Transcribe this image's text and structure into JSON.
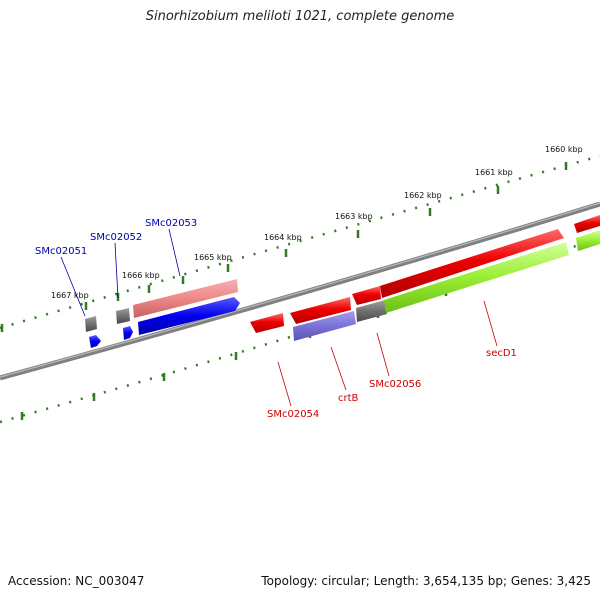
{
  "title": "Sinorhizobium meliloti 1021, complete genome",
  "footer": {
    "accession": "Accession: NC_003047",
    "summary": "Topology: circular; Length: 3,654,135 bp; Genes: 3,425"
  },
  "ruler": {
    "labels": [
      "1667 kbp",
      "1666 kbp",
      "1665 kbp",
      "1664 kbp",
      "1663 kbp",
      "1662 kbp",
      "1661 kbp",
      "1660 kbp"
    ],
    "tick_color": "#2f7d1e"
  },
  "colors": {
    "backbone": "#808080",
    "forward_gene": "#ee0000",
    "forward_gene_light": "#ee8888",
    "reverse_gene": "#0000ee",
    "reverse_gene_light": "#7a72d6",
    "pseudo_gene": "#707070",
    "cds_green": "#99ee33",
    "forward_label": "#cc0000",
    "reverse_label": "#0000aa"
  },
  "genes": {
    "forward": [
      "SMc02054",
      "crtB",
      "SMc02056",
      "secD1"
    ],
    "reverse": [
      "SMc02051",
      "SMc02052",
      "SMc02053"
    ]
  }
}
